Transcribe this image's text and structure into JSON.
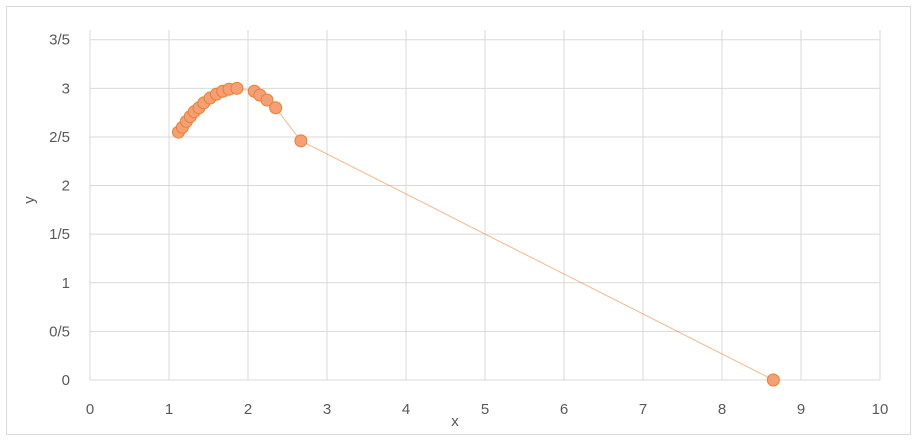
{
  "chart_data": {
    "type": "scatter",
    "title": "",
    "xlabel": "x",
    "ylabel": "y",
    "xlim": [
      0,
      10
    ],
    "ylim": [
      0,
      3.6
    ],
    "x_ticks": [
      0,
      1,
      2,
      3,
      4,
      5,
      6,
      7,
      8,
      9,
      10
    ],
    "x_tick_labels": [
      "0",
      "1",
      "2",
      "3",
      "4",
      "5",
      "6",
      "7",
      "8",
      "9",
      "10"
    ],
    "y_ticks": [
      0,
      0.5,
      1,
      1.5,
      2,
      2.5,
      3,
      3.5
    ],
    "y_tick_labels": [
      "0",
      "0/5",
      "1",
      "1/5",
      "2",
      "2/5",
      "3",
      "3/5"
    ],
    "grid": true,
    "legend": "none",
    "colors": {
      "marker_fill": "#f4a074",
      "marker_stroke": "#ed7d31",
      "line": "#ed7d31",
      "grid": "#d9d9d9"
    },
    "series": [
      {
        "x": [
          1.12,
          1.17,
          1.22,
          1.27,
          1.32,
          1.38,
          1.44,
          1.52,
          1.6,
          1.68,
          1.76,
          1.86,
          2.08,
          2.15,
          2.24,
          2.35,
          2.67,
          8.65
        ],
        "y": [
          2.55,
          2.6,
          2.66,
          2.71,
          2.76,
          2.8,
          2.85,
          2.9,
          2.94,
          2.97,
          2.99,
          3.0,
          2.97,
          2.93,
          2.88,
          2.8,
          2.46,
          0.0
        ]
      }
    ]
  }
}
